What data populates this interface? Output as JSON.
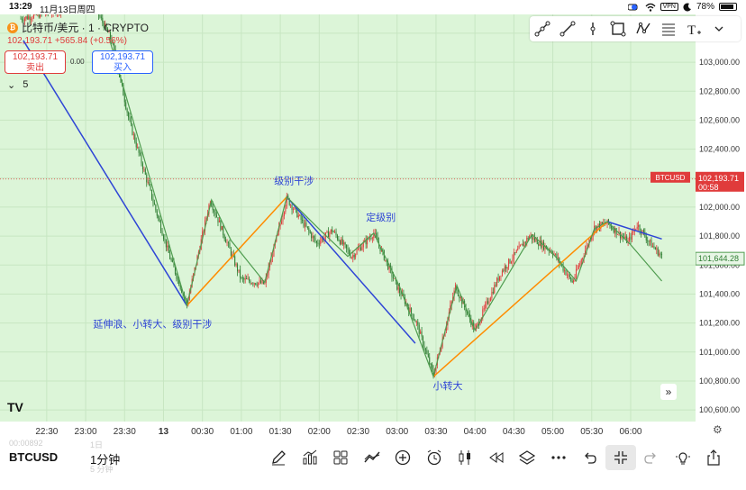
{
  "status_bar": {
    "time": "13:29",
    "date": "11月13日周四",
    "vpn": "VPN",
    "battery": "78%"
  },
  "header": {
    "title": "比特币/美元 · 1 · CRYPTO",
    "coin_glyph": "₿",
    "last": "102,193.71",
    "change": "+565.84 (+0.56%)"
  },
  "trade": {
    "sell_price": "102,193.71",
    "sell_label": "卖出",
    "spread": "0.00",
    "buy_price": "102,193.71",
    "buy_label": "买入"
  },
  "indicator_toggle": {
    "chevron": "⌄",
    "count": "5"
  },
  "price_axis": {
    "labels": [
      "103,200.00",
      "103,000.00",
      "102,800.00",
      "102,600.00",
      "102,400.00",
      "102,200.00",
      "102,000.00",
      "101,800.00",
      "101,600.00",
      "101,400.00",
      "101,200.00",
      "101,000.00",
      "100,800.00",
      "100,600.00"
    ]
  },
  "time_axis": {
    "labels": [
      "22:30",
      "23:00",
      "23:30",
      "13",
      "00:30",
      "01:00",
      "01:30",
      "02:00",
      "02:30",
      "03:00",
      "03:30",
      "04:00",
      "04:30",
      "05:00",
      "05:30",
      "06:00"
    ]
  },
  "price_tags": {
    "symbol": "BTCUSD",
    "current": "102,193.71",
    "countdown": "00:58",
    "hover": "101,644.28"
  },
  "annotations": {
    "a1": "级别干涉",
    "a2": "定级别",
    "a3": "延伸浪、小转大、级别干涉",
    "a4": "小转大"
  },
  "bottom": {
    "symbol": "BTCUSD",
    "interval": "1分钟",
    "ghost_price": "00:00892",
    "ghost_tf": "1日",
    "ghost_interval2": "5 分钟"
  },
  "icons": {
    "scroll": "»",
    "tv_logo": "TV",
    "gear": "⚙"
  },
  "colors": {
    "chart_bg": "#dcf5d8",
    "up": "#e03b3b",
    "down": "#2e7d32",
    "blue_line": "#2e45d6",
    "orange_line": "#ff8c00",
    "green_line": "#4f9c4f",
    "accent": "#2962ff"
  },
  "chart_data": {
    "type": "candlestick",
    "title": "比特币/美元 · 1 · CRYPTO",
    "xlabel": "",
    "ylabel": "",
    "ylim": [
      100520,
      103330
    ],
    "x_ticks": [
      "22:30",
      "23:00",
      "23:30",
      "13",
      "00:30",
      "01:00",
      "01:30",
      "02:00",
      "02:30",
      "03:00",
      "03:30",
      "04:00",
      "04:30",
      "05:00",
      "05:30",
      "06:00"
    ],
    "last_price": 102193.71,
    "hover_price": 101644.28,
    "trend_lines": [
      {
        "color": "blue",
        "points": [
          [
            "22:12",
            103150
          ],
          [
            "00:18",
            101320
          ]
        ]
      },
      {
        "color": "orange",
        "points": [
          [
            "00:18",
            101320
          ],
          [
            "01:35",
            102070
          ]
        ]
      },
      {
        "color": "blue",
        "points": [
          [
            "01:35",
            102070
          ],
          [
            "03:14",
            101060
          ]
        ]
      },
      {
        "color": "orange",
        "points": [
          [
            "03:28",
            100830
          ],
          [
            "05:42",
            101900
          ]
        ]
      },
      {
        "color": "blue",
        "points": [
          [
            "05:42",
            101900
          ],
          [
            "06:24",
            101780
          ]
        ]
      },
      {
        "color": "green",
        "points": [
          [
            "23:18",
            103170
          ],
          [
            "00:18",
            101320
          ],
          [
            "00:37",
            102050
          ],
          [
            "00:52",
            101770
          ],
          [
            "01:18",
            101480
          ],
          [
            "01:35",
            102070
          ],
          [
            "02:02",
            101830
          ],
          [
            "02:22",
            101660
          ],
          [
            "02:42",
            101820
          ],
          [
            "03:02",
            101450
          ],
          [
            "03:28",
            100830
          ],
          [
            "03:46",
            101460
          ],
          [
            "04:00",
            101150
          ],
          [
            "04:44",
            101810
          ],
          [
            "05:00",
            101680
          ],
          [
            "05:18",
            101490
          ],
          [
            "05:32",
            101850
          ],
          [
            "05:42",
            101900
          ],
          [
            "06:00",
            101740
          ],
          [
            "06:24",
            101490
          ]
        ]
      }
    ],
    "annotations": [
      {
        "text": "级别干涉",
        "at": [
          "01:35",
          102070
        ]
      },
      {
        "text": "定级别",
        "at": [
          "02:42",
          101820
        ]
      },
      {
        "text": "延伸浪、小转大、级别干涉",
        "at": [
          "00:18",
          101320
        ]
      },
      {
        "text": "小转大",
        "at": [
          "03:28",
          100830
        ]
      }
    ],
    "price_path": [
      [
        "22:10",
        103300
      ],
      [
        "23:05",
        103420
      ],
      [
        "23:20",
        103150
      ],
      [
        "23:34",
        102580
      ],
      [
        "23:50",
        102100
      ],
      [
        "00:05",
        101650
      ],
      [
        "00:18",
        101330
      ],
      [
        "00:36",
        102050
      ],
      [
        "01:00",
        101500
      ],
      [
        "01:18",
        101470
      ],
      [
        "01:35",
        102060
      ],
      [
        "01:58",
        101750
      ],
      [
        "02:10",
        101840
      ],
      [
        "02:25",
        101660
      ],
      [
        "02:42",
        101820
      ],
      [
        "03:00",
        101450
      ],
      [
        "03:15",
        101200
      ],
      [
        "03:28",
        100840
      ],
      [
        "03:45",
        101450
      ],
      [
        "04:00",
        101150
      ],
      [
        "04:20",
        101550
      ],
      [
        "04:42",
        101800
      ],
      [
        "05:00",
        101690
      ],
      [
        "05:15",
        101480
      ],
      [
        "05:32",
        101860
      ],
      [
        "05:42",
        101890
      ],
      [
        "05:58",
        101760
      ],
      [
        "06:05",
        101880
      ],
      [
        "06:15",
        101750
      ],
      [
        "06:24",
        101660
      ]
    ]
  }
}
